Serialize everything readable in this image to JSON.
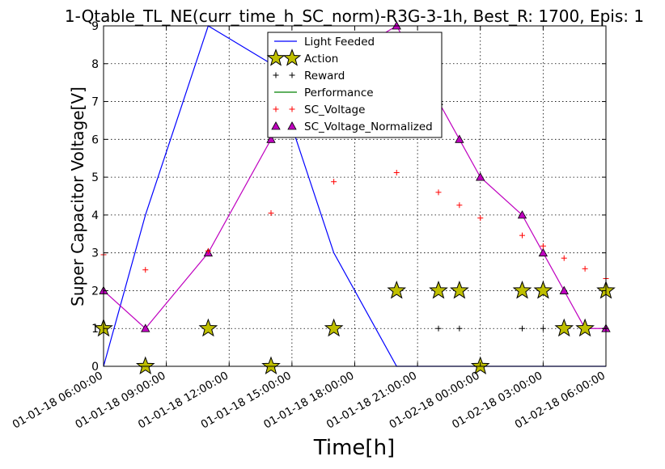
{
  "chart_data": {
    "type": "line",
    "title": "1-Qtable_TL_NE(curr_time_h_SC_norm)-R3G-3-1h, Best_R: 1700, Epis: 1",
    "xlabel": "Time[h]",
    "ylabel": "Super Capacitor Voltage[V]",
    "ylim": [
      0,
      9
    ],
    "xlim": [
      "01-01-18 06:00:00",
      "01-02-18 06:00:00"
    ],
    "grid": true,
    "legend_position": "top-center",
    "x_ticks": [
      "01-01-18 06:00:00",
      "01-01-18 09:00:00",
      "01-01-18 12:00:00",
      "01-01-18 15:00:00",
      "01-01-18 18:00:00",
      "01-01-18 21:00:00",
      "01-02-18 00:00:00",
      "01-02-18 03:00:00",
      "01-02-18 06:00:00"
    ],
    "y_ticks": [
      0,
      1,
      2,
      3,
      4,
      5,
      6,
      7,
      8,
      9
    ],
    "series": [
      {
        "name": "Light Feeded",
        "color": "#0000ff",
        "marker": "line",
        "x": [
          "01-01-18 06:00:00",
          "01-01-18 08:00:00",
          "01-01-18 11:00:00",
          "01-01-18 14:00:00",
          "01-01-18 17:00:00",
          "01-01-18 20:00:00",
          "01-02-18 06:00:00"
        ],
        "values": [
          0,
          4,
          9,
          8,
          3,
          0,
          0
        ]
      },
      {
        "name": "Action",
        "color": "#bfbf00",
        "marker": "star",
        "x": [
          "01-01-18 06:00:00",
          "01-01-18 08:00:00",
          "01-01-18 11:00:00",
          "01-01-18 14:00:00",
          "01-01-18 17:00:00",
          "01-01-18 20:00:00",
          "01-01-18 22:00:00",
          "01-01-18 23:00:00",
          "01-02-18 00:00:00",
          "01-02-18 02:00:00",
          "01-02-18 03:00:00",
          "01-02-18 04:00:00",
          "01-02-18 05:00:00",
          "01-02-18 06:00:00"
        ],
        "values": [
          1,
          0,
          1,
          0,
          1,
          2,
          2,
          2,
          0,
          2,
          2,
          1,
          1,
          2
        ]
      },
      {
        "name": "Reward",
        "color": "#000000",
        "marker": "plus",
        "x": [
          "01-01-18 22:00:00",
          "01-01-18 23:00:00",
          "01-02-18 02:00:00",
          "01-02-18 03:00:00",
          "01-02-18 04:00:00",
          "01-02-18 05:00:00",
          "01-02-18 06:00:00"
        ],
        "values": [
          1,
          1,
          1,
          1,
          1,
          1,
          1
        ]
      },
      {
        "name": "Performance",
        "color": "#008000",
        "marker": "line",
        "x": [],
        "values": []
      },
      {
        "name": "SC_Voltage",
        "color": "#ff0000",
        "marker": "plus",
        "x": [
          "01-01-18 06:00:00",
          "01-01-18 08:00:00",
          "01-01-18 11:00:00",
          "01-01-18 14:00:00",
          "01-01-18 17:00:00",
          "01-01-18 20:00:00",
          "01-01-18 22:00:00",
          "01-01-18 23:00:00",
          "01-02-18 00:00:00",
          "01-02-18 02:00:00",
          "01-02-18 03:00:00",
          "01-02-18 04:00:00",
          "01-02-18 05:00:00",
          "01-02-18 06:00:00"
        ],
        "values": [
          2.95,
          2.55,
          3.05,
          4.05,
          4.88,
          5.12,
          4.6,
          4.26,
          3.92,
          3.46,
          3.18,
          2.86,
          2.58,
          2.32
        ]
      },
      {
        "name": "SC_Voltage_Normalized",
        "color": "#bf00bf",
        "marker": "triangle",
        "x": [
          "01-01-18 06:00:00",
          "01-01-18 08:00:00",
          "01-01-18 11:00:00",
          "01-01-18 14:00:00",
          "01-01-18 17:00:00",
          "01-01-18 20:00:00",
          "01-01-18 22:00:00",
          "01-01-18 23:00:00",
          "01-02-18 00:00:00",
          "01-02-18 02:00:00",
          "01-02-18 03:00:00",
          "01-02-18 04:00:00",
          "01-02-18 05:00:00",
          "01-02-18 06:00:00"
        ],
        "values": [
          2,
          1,
          3,
          6,
          8,
          9,
          7,
          6,
          5,
          4,
          3,
          2,
          1,
          1
        ]
      }
    ]
  }
}
